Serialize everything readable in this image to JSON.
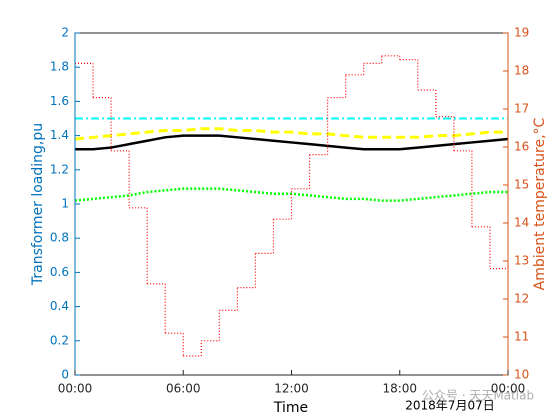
{
  "chart_data": {
    "type": "line",
    "xlabel": "Time",
    "ylabel": "Transformer loading,pu",
    "y2label": "Ambient temperature,°C",
    "date_label": "2018年7月07日",
    "watermark": "公众号 · 天天Matlab",
    "x": [
      0,
      1,
      2,
      3,
      4,
      5,
      6,
      7,
      8,
      9,
      10,
      11,
      12,
      13,
      14,
      15,
      16,
      17,
      18,
      19,
      20,
      21,
      22,
      23,
      24
    ],
    "xlim": [
      0,
      24
    ],
    "xticks": [
      {
        "value": 0,
        "label": "00:00"
      },
      {
        "value": 6,
        "label": "06:00"
      },
      {
        "value": 12,
        "label": "12:00"
      },
      {
        "value": 18,
        "label": "18:00"
      },
      {
        "value": 24,
        "label": "00:00"
      }
    ],
    "ylim": [
      0,
      2
    ],
    "yticks": [
      0,
      0.2,
      0.4,
      0.6,
      0.8,
      1,
      1.2,
      1.4,
      1.6,
      1.8,
      2
    ],
    "y2lim": [
      10,
      19
    ],
    "y2ticks": [
      10,
      11,
      12,
      13,
      14,
      15,
      16,
      17,
      18,
      19
    ],
    "y_color": "#0072bd",
    "y2_color": "#d95319",
    "grid": false,
    "series": [
      {
        "color": "#00ffff",
        "dash": "8 3 2 3",
        "width": 2,
        "values": [
          1.5,
          1.5,
          1.5,
          1.5,
          1.5,
          1.5,
          1.5,
          1.5,
          1.5,
          1.5,
          1.5,
          1.5,
          1.5,
          1.5,
          1.5,
          1.5,
          1.5,
          1.5,
          1.5,
          1.5,
          1.5,
          1.5,
          1.5,
          1.5,
          1.5
        ]
      },
      {
        "color": "#ffff00",
        "dash": "9 5",
        "width": 3,
        "values": [
          1.38,
          1.39,
          1.4,
          1.41,
          1.42,
          1.43,
          1.43,
          1.44,
          1.44,
          1.43,
          1.43,
          1.42,
          1.42,
          1.41,
          1.41,
          1.4,
          1.39,
          1.39,
          1.39,
          1.39,
          1.4,
          1.4,
          1.41,
          1.42,
          1.42
        ]
      },
      {
        "color": "#000000",
        "dash": "none",
        "width": 2.5,
        "values": [
          1.32,
          1.32,
          1.33,
          1.35,
          1.37,
          1.39,
          1.4,
          1.4,
          1.4,
          1.39,
          1.38,
          1.37,
          1.36,
          1.35,
          1.34,
          1.33,
          1.32,
          1.32,
          1.32,
          1.33,
          1.34,
          1.35,
          1.36,
          1.37,
          1.38
        ]
      },
      {
        "color": "#00ff00",
        "dash": "2 2",
        "width": 2.5,
        "values": [
          1.02,
          1.03,
          1.04,
          1.05,
          1.07,
          1.08,
          1.09,
          1.09,
          1.09,
          1.08,
          1.07,
          1.06,
          1.06,
          1.05,
          1.04,
          1.03,
          1.03,
          1.02,
          1.02,
          1.03,
          1.04,
          1.05,
          1.06,
          1.07,
          1.07
        ]
      },
      {
        "color": "#ff0000",
        "dash": "1 2",
        "width": 1.2,
        "axis": "y2",
        "drawstyle": "steps-post",
        "x": [
          0,
          1,
          2,
          3,
          4,
          5,
          6,
          7,
          8,
          9,
          10,
          11,
          12,
          13,
          14,
          15,
          16,
          17,
          18,
          19,
          20,
          21,
          22,
          23
        ],
        "values": [
          18.2,
          17.3,
          15.9,
          14.4,
          12.4,
          11.1,
          10.5,
          10.9,
          11.7,
          12.3,
          13.2,
          14.1,
          14.9,
          15.8,
          17.3,
          17.9,
          18.2,
          18.4,
          18.3,
          17.5,
          16.8,
          15.9,
          13.9,
          12.8
        ]
      }
    ]
  }
}
